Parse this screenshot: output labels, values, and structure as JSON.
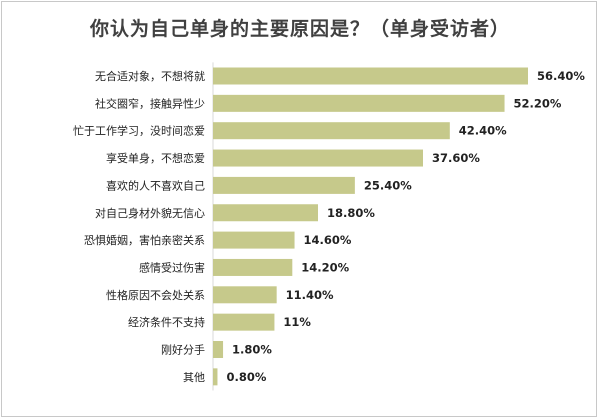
{
  "chart_data": {
    "type": "bar",
    "orientation": "horizontal",
    "title": "你认为自己单身的主要原因是？（单身受访者）",
    "categories": [
      "无合适对象，不想将就",
      "社交圈窄，接触异性少",
      "忙于工作学习，没时间恋爱",
      "享受单身，不想恋爱",
      "喜欢的人不喜欢自己",
      "对自己身材外貌无信心",
      "恐惧婚姻，害怕亲密关系",
      "感情受过伤害",
      "性格原因不会处关系",
      "经济条件不支持",
      "刚好分手",
      "其他"
    ],
    "values": [
      56.4,
      52.2,
      42.4,
      37.6,
      25.4,
      18.8,
      14.6,
      14.2,
      11.4,
      11,
      1.8,
      0.8
    ],
    "value_labels": [
      "56.40%",
      "52.20%",
      "42.40%",
      "37.60%",
      "25.40%",
      "18.80%",
      "14.60%",
      "14.20%",
      "11.40%",
      "11%",
      "1.80%",
      "0.80%"
    ],
    "xlim": [
      0,
      56.4
    ],
    "grid": false,
    "bar_color": "#c6c98b"
  }
}
